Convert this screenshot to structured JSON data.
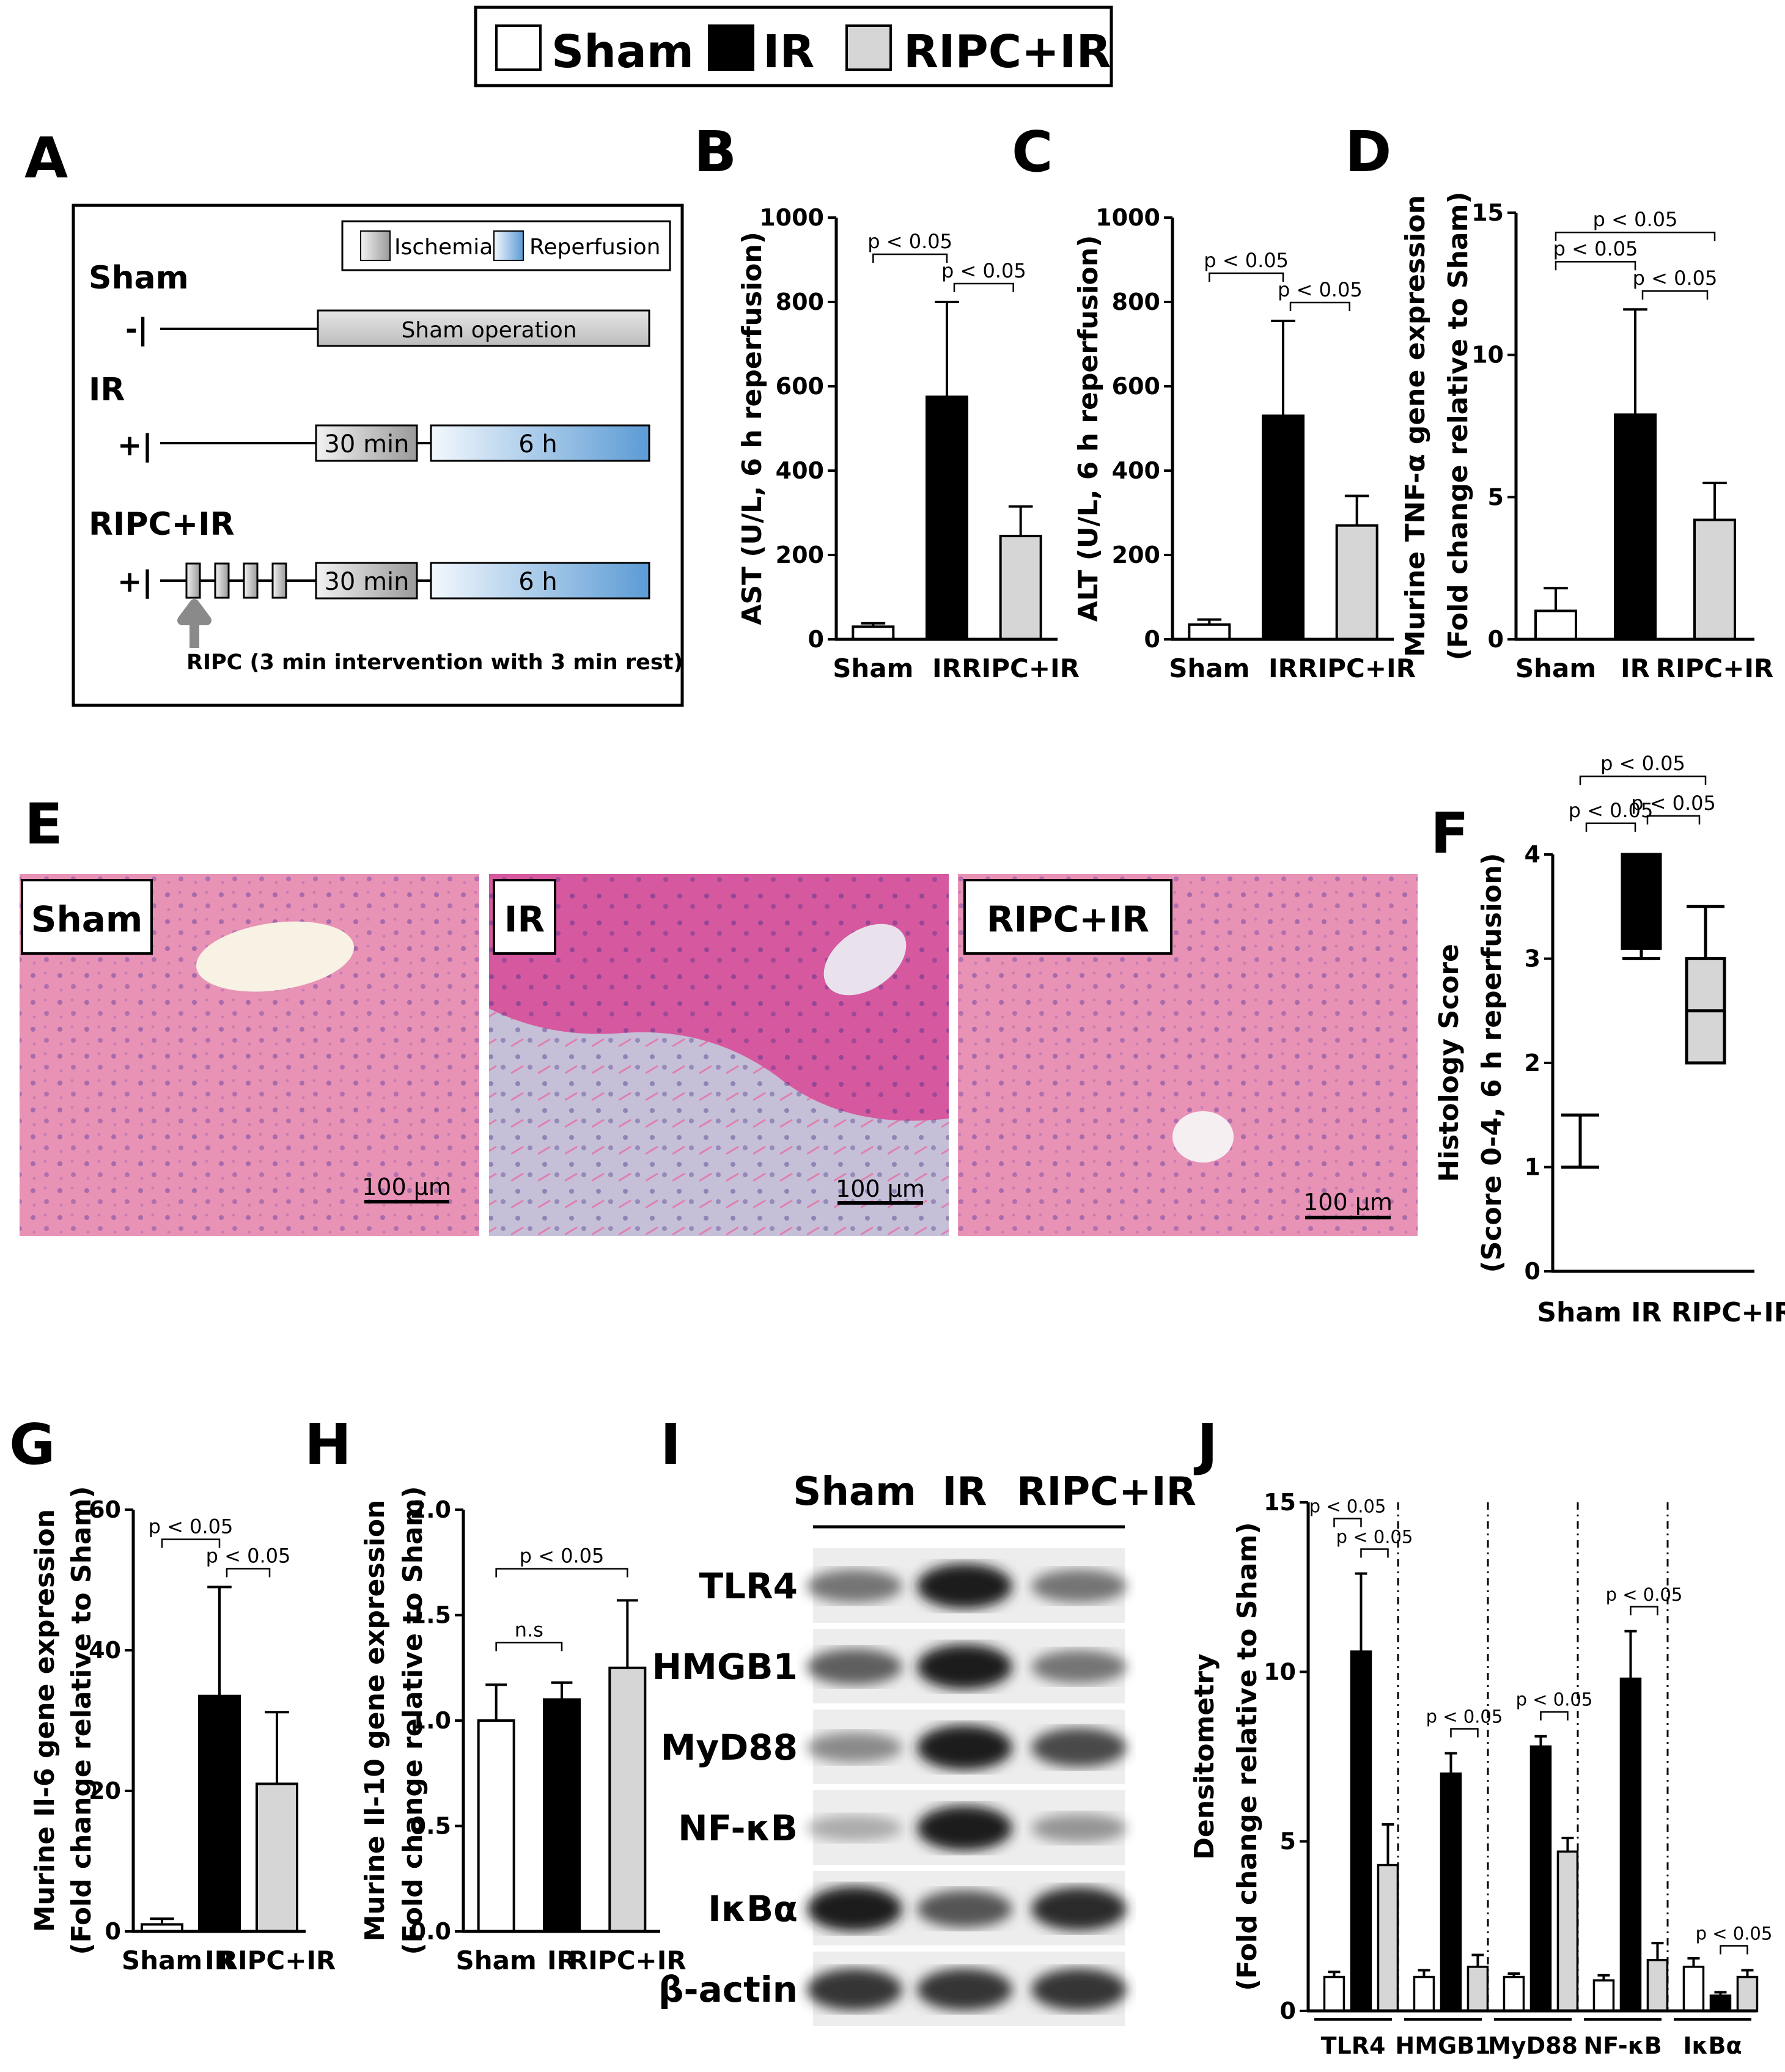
{
  "legend": [
    {
      "label": "Sham",
      "color": "#ffffff"
    },
    {
      "label": "IR",
      "color": "#000000"
    },
    {
      "label": "RIPC+IR",
      "color": "#d6d6d6"
    }
  ],
  "panel_letters": [
    "A",
    "B",
    "C",
    "D",
    "E",
    "F",
    "G",
    "H",
    "I",
    "J"
  ],
  "panelA": {
    "legend_ischemia": "Ischemia",
    "legend_reperfusion": "Reperfusion",
    "groups": [
      {
        "name": "Sham",
        "sign": "-|",
        "box1": "Sham operation"
      },
      {
        "name": "IR",
        "sign": "+|",
        "box1": "30 min",
        "box2": "6 h"
      },
      {
        "name": "RIPC+IR",
        "sign": "+|",
        "box1": "30 min",
        "box2": "6 h"
      }
    ],
    "ripc_note": "RIPC (3 min intervention with 3 min rest)"
  },
  "panelE": {
    "labels": [
      "Sham",
      "IR",
      "RIPC+IR"
    ],
    "scale_bar": "100 μm"
  },
  "panelI": {
    "columns": [
      "Sham",
      "IR",
      "RIPC+IR"
    ],
    "proteins": [
      "TLR4",
      "HMGB1",
      "MyD88",
      "NF-κB",
      "IκBα",
      "β-actin"
    ],
    "band_intensity": [
      [
        0.55,
        0.95,
        0.55
      ],
      [
        0.65,
        0.95,
        0.55
      ],
      [
        0.45,
        0.95,
        0.75
      ],
      [
        0.3,
        0.95,
        0.4
      ],
      [
        0.95,
        0.7,
        0.9
      ],
      [
        0.85,
        0.85,
        0.85
      ]
    ]
  },
  "chart_data": [
    {
      "id": "B",
      "type": "bar",
      "categories": [
        "Sham",
        "IR",
        "RIPC+IR"
      ],
      "values": [
        30,
        575,
        245
      ],
      "errors": [
        8,
        225,
        70
      ],
      "ylabel": "AST (U/L, 6 h reperfusion)",
      "ylim": [
        0,
        1000
      ],
      "yticks": [
        0,
        200,
        400,
        600,
        800,
        1000
      ],
      "brackets": [
        {
          "from": 0,
          "to": 1,
          "label": "p < 0.05",
          "level": 1
        },
        {
          "from": 1,
          "to": 2,
          "label": "p < 0.05",
          "level": 0
        }
      ]
    },
    {
      "id": "C",
      "type": "bar",
      "categories": [
        "Sham",
        "IR",
        "RIPC+IR"
      ],
      "values": [
        35,
        530,
        270
      ],
      "errors": [
        12,
        225,
        70
      ],
      "ylabel": "ALT (U/L, 6 h reperfusion)",
      "ylim": [
        0,
        1000
      ],
      "yticks": [
        0,
        200,
        400,
        600,
        800,
        1000
      ],
      "brackets": [
        {
          "from": 0,
          "to": 1,
          "label": "p < 0.05",
          "level": 1
        },
        {
          "from": 1,
          "to": 2,
          "label": "p < 0.05",
          "level": 0
        }
      ]
    },
    {
      "id": "D",
      "type": "bar",
      "categories": [
        "Sham",
        "IR",
        "RIPC+IR"
      ],
      "values": [
        1.0,
        7.9,
        4.2
      ],
      "errors": [
        0.8,
        3.7,
        1.3
      ],
      "ylabel_line1": "Murine TNF-α gene expression",
      "ylabel_line2": "(Fold change relative to Sham)",
      "ylim": [
        0,
        15
      ],
      "yticks": [
        0,
        5,
        10,
        15
      ],
      "brackets": [
        {
          "from": 0,
          "to": 1,
          "label": "p < 0.05",
          "level": 1
        },
        {
          "from": 1,
          "to": 2,
          "label": "p < 0.05",
          "level": 0
        },
        {
          "from": 0,
          "to": 2,
          "label": "p < 0.05",
          "level": 2
        }
      ]
    },
    {
      "id": "F",
      "type": "box",
      "categories": [
        "Sham",
        "IR",
        "RIPC+IR"
      ],
      "boxes": [
        {
          "min": 1.0,
          "q1": 1.0,
          "median": 1.0,
          "q3": 1.0,
          "max": 1.5
        },
        {
          "min": 3.0,
          "q1": 3.1,
          "median": 4.0,
          "q3": 4.0,
          "max": 4.0
        },
        {
          "min": 2.0,
          "q1": 2.0,
          "median": 2.5,
          "q3": 3.0,
          "max": 3.5
        }
      ],
      "ylabel_line1": "Histology Score",
      "ylabel_line2": "(Score 0-4, 6 h reperfusion)",
      "ylim": [
        0,
        4
      ],
      "yticks": [
        0,
        1,
        2,
        3,
        4
      ],
      "category_label": "Sham IR  RIPC+IR",
      "brackets": [
        {
          "from": 0,
          "to": 1,
          "label": "p < 0.05",
          "level": 0
        },
        {
          "from": 1,
          "to": 2,
          "label": "p < 0.05",
          "level": 1
        },
        {
          "from": 0,
          "to": 2,
          "label": "p < 0.05",
          "level": 2
        }
      ]
    },
    {
      "id": "G",
      "type": "bar",
      "categories": [
        "Sham",
        "IR",
        "RIPC+IR"
      ],
      "values": [
        1,
        33.5,
        21
      ],
      "errors": [
        0.8,
        15.5,
        10.2
      ],
      "ylabel_line1": "Murine Il-6 gene expression",
      "ylabel_line2": "(Fold change relative to Sham)",
      "ylim": [
        0,
        60
      ],
      "yticks": [
        0,
        20,
        40,
        60
      ],
      "brackets": [
        {
          "from": 0,
          "to": 1,
          "label": "p < 0.05",
          "level": 1
        },
        {
          "from": 1,
          "to": 2,
          "label": "p < 0.05",
          "level": 0
        }
      ]
    },
    {
      "id": "H",
      "type": "bar",
      "categories": [
        "Sham",
        "IR",
        "RIPC+IR"
      ],
      "values": [
        1.0,
        1.1,
        1.25
      ],
      "errors": [
        0.17,
        0.08,
        0.32
      ],
      "ylabel_line1": "Murine Il-10 gene expression",
      "ylabel_line2": "(Fold change relative to Sham)",
      "ylim": [
        0,
        2.0
      ],
      "yticks": [
        "0.0",
        "0.5",
        "1.0",
        "1.5",
        "2.0"
      ],
      "brackets": [
        {
          "from": 0,
          "to": 1,
          "label": "n.s",
          "level": 0
        },
        {
          "from": 0,
          "to": 2,
          "label": "p < 0.05",
          "level": 1
        }
      ]
    },
    {
      "id": "J",
      "type": "bar",
      "groups": [
        "TLR4",
        "HMGB1",
        "MyD88",
        "NF-κB",
        "IκBα"
      ],
      "series": [
        {
          "name": "Sham",
          "values": [
            1.0,
            1.0,
            1.0,
            0.9,
            1.3
          ],
          "errors": [
            0.15,
            0.2,
            0.1,
            0.15,
            0.25
          ]
        },
        {
          "name": "IR",
          "values": [
            10.6,
            7.0,
            7.8,
            9.8,
            0.45
          ],
          "errors": [
            2.3,
            0.6,
            0.3,
            1.4,
            0.1
          ]
        },
        {
          "name": "RIPC+IR",
          "values": [
            4.3,
            1.3,
            4.7,
            1.5,
            1.0
          ],
          "errors": [
            1.2,
            0.35,
            0.4,
            0.5,
            0.2
          ]
        }
      ],
      "ylabel_line1": "Densitometry",
      "ylabel_line2": "(Fold change relative to Sham)",
      "ylim": [
        0,
        15
      ],
      "yticks": [
        0,
        5,
        10,
        15
      ],
      "brackets": [
        {
          "group": 0,
          "from": 0,
          "to": 1,
          "label": "p < 0.05",
          "level": 1
        },
        {
          "group": 0,
          "from": 1,
          "to": 2,
          "label": "p < 0.05",
          "level": 0
        },
        {
          "group": 1,
          "from": 1,
          "to": 2,
          "label": "p < 0.05",
          "level": 0
        },
        {
          "group": 2,
          "from": 1,
          "to": 2,
          "label": "p < 0.05",
          "level": 0
        },
        {
          "group": 3,
          "from": 1,
          "to": 2,
          "label": "p < 0.05",
          "level": 0
        },
        {
          "group": 4,
          "from": 1,
          "to": 2,
          "label": "p < 0.05",
          "level": 0
        }
      ]
    }
  ]
}
